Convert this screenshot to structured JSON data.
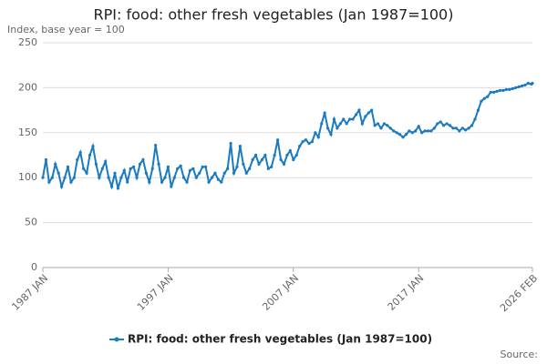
{
  "chart_data": {
    "type": "line",
    "title": "RPI: food: other fresh vegetables (Jan 1987=100)",
    "subtitle": "Index, base year = 100",
    "source": "Source:",
    "x": [
      1987,
      1987.25,
      1987.5,
      1987.75,
      1988,
      1988.25,
      1988.5,
      1988.75,
      1989,
      1989.25,
      1989.5,
      1989.75,
      1990,
      1990.25,
      1990.5,
      1990.75,
      1991,
      1991.25,
      1991.5,
      1991.75,
      1992,
      1992.25,
      1992.5,
      1992.75,
      1993,
      1993.25,
      1993.5,
      1993.75,
      1994,
      1994.25,
      1994.5,
      1994.75,
      1995,
      1995.25,
      1995.5,
      1995.75,
      1996,
      1996.25,
      1996.5,
      1996.75,
      1997,
      1997.25,
      1997.5,
      1997.75,
      1998,
      1998.25,
      1998.5,
      1998.75,
      1999,
      1999.25,
      1999.5,
      1999.75,
      2000,
      2000.25,
      2000.5,
      2000.75,
      2001,
      2001.25,
      2001.5,
      2001.75,
      2002,
      2002.25,
      2002.5,
      2002.75,
      2003,
      2003.25,
      2003.5,
      2003.75,
      2004,
      2004.25,
      2004.5,
      2004.75,
      2005,
      2005.25,
      2005.5,
      2005.75,
      2006,
      2006.25,
      2006.5,
      2006.75,
      2007,
      2007.25,
      2007.5,
      2007.75,
      2008,
      2008.25,
      2008.5,
      2008.75,
      2009,
      2009.25,
      2009.5,
      2009.75,
      2010,
      2010.25,
      2010.5,
      2010.75,
      2011,
      2011.25,
      2011.5,
      2011.75,
      2012,
      2012.25,
      2012.5,
      2012.75,
      2013,
      2013.25,
      2013.5,
      2013.75,
      2014,
      2014.25,
      2014.5,
      2014.75,
      2015,
      2015.25,
      2015.5,
      2015.75,
      2016,
      2016.25,
      2016.5,
      2016.75,
      2017,
      2017.25,
      2017.5,
      2017.75,
      2018,
      2018.25,
      2018.5,
      2018.75,
      2019,
      2019.25,
      2019.5,
      2019.75,
      2020,
      2020.25,
      2020.5,
      2020.75,
      2021,
      2021.25,
      2021.5,
      2021.75,
      2022,
      2022.25,
      2022.5,
      2022.75,
      2023,
      2023.25,
      2023.5,
      2023.75,
      2024,
      2024.25,
      2024.5,
      2024.75,
      2025,
      2025.25,
      2025.5,
      2025.75,
      2026,
      2026.083
    ],
    "series": [
      {
        "name": "RPI: food: other fresh vegetables (Jan 1987=100)",
        "color": "#1a7bc0",
        "values": [
          100,
          120,
          95,
          100,
          115,
          105,
          90,
          100,
          112,
          95,
          100,
          120,
          128,
          110,
          105,
          125,
          135,
          115,
          100,
          110,
          118,
          100,
          90,
          105,
          88,
          100,
          108,
          95,
          110,
          112,
          100,
          115,
          120,
          105,
          95,
          110,
          136,
          115,
          95,
          100,
          112,
          90,
          100,
          110,
          113,
          100,
          95,
          108,
          110,
          100,
          105,
          112,
          112,
          95,
          100,
          105,
          98,
          95,
          105,
          110,
          138,
          105,
          112,
          135,
          115,
          105,
          110,
          120,
          125,
          115,
          120,
          125,
          110,
          112,
          125,
          142,
          120,
          115,
          125,
          130,
          120,
          125,
          135,
          140,
          142,
          138,
          140,
          150,
          145,
          160,
          172,
          155,
          148,
          165,
          155,
          160,
          165,
          160,
          165,
          165,
          170,
          175,
          160,
          168,
          172,
          175,
          158,
          160,
          155,
          160,
          158,
          155,
          152,
          150,
          148,
          145,
          148,
          152,
          150,
          152,
          157,
          150,
          152,
          152,
          152,
          155,
          160,
          162,
          158,
          160,
          158,
          155,
          155,
          152,
          155,
          153,
          155,
          158,
          165,
          175,
          185,
          188,
          190,
          195,
          195,
          196,
          197,
          197,
          198,
          198,
          199,
          200,
          201,
          202,
          203,
          205,
          204,
          205
        ]
      }
    ],
    "xlim": [
      1987,
      2026.083
    ],
    "xticks": [
      {
        "value": 1987,
        "label": "1987 JAN"
      },
      {
        "value": 1997,
        "label": "1997 JAN"
      },
      {
        "value": 2007,
        "label": "2007 JAN"
      },
      {
        "value": 2017,
        "label": "2017 JAN"
      },
      {
        "value": 2026.083,
        "label": "2026 FEB"
      }
    ],
    "ylim": [
      0,
      250
    ],
    "yticks": [
      0,
      50,
      100,
      150,
      200,
      250
    ],
    "grid": true
  }
}
